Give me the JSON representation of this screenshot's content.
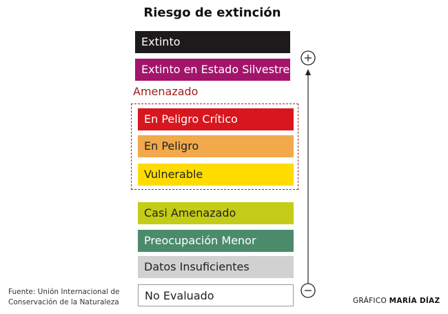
{
  "header": {
    "title": "Riesgo de extinción"
  },
  "group": {
    "label": "Amenazado"
  },
  "categories": [
    {
      "label": "Extinto",
      "color": "#1c1a1b",
      "text_color": "#ffffff"
    },
    {
      "label": "Extinto en Estado Silvestre",
      "color": "#a3156b",
      "text_color": "#ffffff"
    },
    {
      "label": "En Peligro Crítico",
      "color": "#d7161d",
      "text_color": "#ffffff"
    },
    {
      "label": "En Peligro",
      "color": "#f1a94b",
      "text_color": "#222222"
    },
    {
      "label": "Vulnerable",
      "color": "#ffdc00",
      "text_color": "#222222"
    },
    {
      "label": "Casi Amenazado",
      "color": "#c3cd17",
      "text_color": "#222222"
    },
    {
      "label": "Preocupación Menor",
      "color": "#4b8b6c",
      "text_color": "#ffffff"
    },
    {
      "label": "Datos Insuficientes",
      "color": "#d1d1d1",
      "text_color": "#222222"
    },
    {
      "label": "No Evaluado",
      "color": "#ffffff",
      "text_color": "#222222"
    }
  ],
  "source": {
    "lines": [
      "Fuente: Unión Internacional de",
      "Conservación de la Naturaleza"
    ]
  },
  "credit": {
    "prefix": "GRÁFICO",
    "author": "MARÍA DÍAZ"
  }
}
